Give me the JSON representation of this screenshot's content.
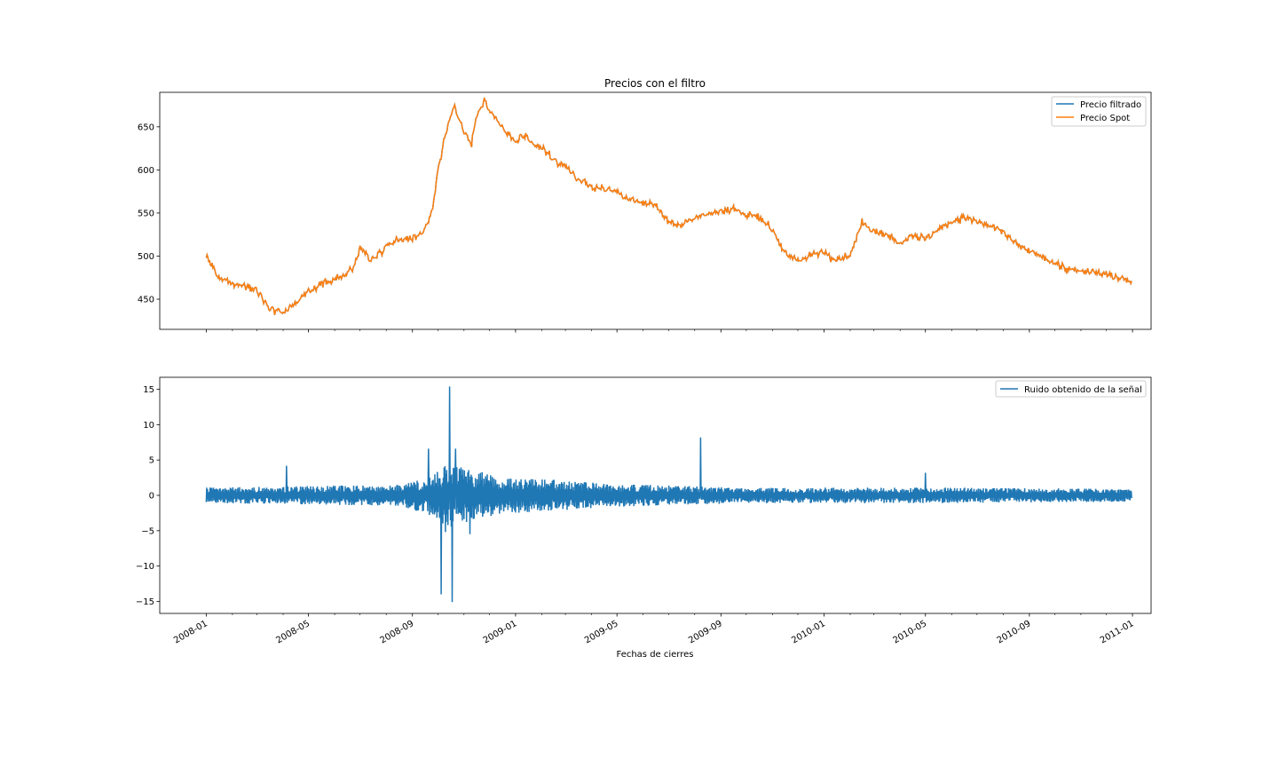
{
  "chart_data": [
    {
      "type": "line",
      "title": "Precios con el filtro",
      "xlabel": "",
      "ylabel": "",
      "xlim": [
        "2007-11-07",
        "2011-01-23"
      ],
      "ylim": [
        415,
        690
      ],
      "yticks": [
        450,
        500,
        550,
        600,
        650
      ],
      "grid": false,
      "legend_position": "top-right",
      "series": [
        {
          "name": "Precio filtrado",
          "color": "#1f77b4",
          "x": [
            "2008-01-01",
            "2008-01-08",
            "2008-01-15",
            "2008-02-01",
            "2008-02-15",
            "2008-03-01",
            "2008-03-15",
            "2008-04-01",
            "2008-04-15",
            "2008-05-01",
            "2008-05-15",
            "2008-06-01",
            "2008-06-15",
            "2008-06-25",
            "2008-07-01",
            "2008-07-15",
            "2008-08-01",
            "2008-08-15",
            "2008-09-01",
            "2008-09-15",
            "2008-09-25",
            "2008-10-01",
            "2008-10-10",
            "2008-10-20",
            "2008-11-01",
            "2008-11-10",
            "2008-11-15",
            "2008-11-25",
            "2008-12-05",
            "2008-12-15",
            "2009-01-01",
            "2009-01-10",
            "2009-01-20",
            "2009-02-01",
            "2009-02-10",
            "2009-02-15",
            "2009-03-01",
            "2009-03-15",
            "2009-04-01",
            "2009-04-15",
            "2009-05-01",
            "2009-05-15",
            "2009-06-01",
            "2009-06-15",
            "2009-07-01",
            "2009-07-15",
            "2009-08-01",
            "2009-08-15",
            "2009-09-01",
            "2009-09-15",
            "2009-10-01",
            "2009-10-15",
            "2009-11-01",
            "2009-11-15",
            "2009-12-01",
            "2009-12-15",
            "2010-01-01",
            "2010-01-15",
            "2010-02-01",
            "2010-02-15",
            "2010-03-01",
            "2010-03-15",
            "2010-04-01",
            "2010-04-15",
            "2010-05-01",
            "2010-05-15",
            "2010-06-01",
            "2010-06-15",
            "2010-07-01",
            "2010-07-15",
            "2010-08-01",
            "2010-08-15",
            "2010-09-01",
            "2010-09-15",
            "2010-10-01",
            "2010-10-15",
            "2010-11-01",
            "2010-11-15",
            "2010-12-01",
            "2010-12-15",
            "2010-12-31"
          ],
          "y": [
            499,
            490,
            475,
            468,
            465,
            462,
            440,
            435,
            445,
            458,
            468,
            472,
            480,
            490,
            510,
            495,
            512,
            520,
            520,
            530,
            555,
            600,
            640,
            675,
            645,
            630,
            660,
            680,
            665,
            650,
            632,
            640,
            630,
            625,
            618,
            610,
            605,
            590,
            580,
            578,
            575,
            565,
            562,
            560,
            540,
            535,
            545,
            548,
            553,
            555,
            548,
            545,
            530,
            505,
            495,
            500,
            505,
            495,
            500,
            540,
            530,
            525,
            515,
            525,
            520,
            530,
            540,
            545,
            540,
            535,
            528,
            515,
            505,
            500,
            492,
            485,
            482,
            482,
            478,
            476,
            470
          ]
        },
        {
          "name": "Precio Spot",
          "color": "#ff7f0e",
          "x": [
            "2008-01-01",
            "2008-01-08",
            "2008-01-15",
            "2008-02-01",
            "2008-02-15",
            "2008-03-01",
            "2008-03-15",
            "2008-04-01",
            "2008-04-15",
            "2008-05-01",
            "2008-05-15",
            "2008-06-01",
            "2008-06-15",
            "2008-06-25",
            "2008-07-01",
            "2008-07-15",
            "2008-08-01",
            "2008-08-15",
            "2008-09-01",
            "2008-09-15",
            "2008-09-25",
            "2008-10-01",
            "2008-10-10",
            "2008-10-20",
            "2008-11-01",
            "2008-11-10",
            "2008-11-15",
            "2008-11-25",
            "2008-12-05",
            "2008-12-15",
            "2009-01-01",
            "2009-01-10",
            "2009-01-20",
            "2009-02-01",
            "2009-02-10",
            "2009-02-15",
            "2009-03-01",
            "2009-03-15",
            "2009-04-01",
            "2009-04-15",
            "2009-05-01",
            "2009-05-15",
            "2009-06-01",
            "2009-06-15",
            "2009-07-01",
            "2009-07-15",
            "2009-08-01",
            "2009-08-15",
            "2009-09-01",
            "2009-09-15",
            "2009-10-01",
            "2009-10-15",
            "2009-11-01",
            "2009-11-15",
            "2009-12-01",
            "2009-12-15",
            "2010-01-01",
            "2010-01-15",
            "2010-02-01",
            "2010-02-15",
            "2010-03-01",
            "2010-03-15",
            "2010-04-01",
            "2010-04-15",
            "2010-05-01",
            "2010-05-15",
            "2010-06-01",
            "2010-06-15",
            "2010-07-01",
            "2010-07-15",
            "2010-08-01",
            "2010-08-15",
            "2010-09-01",
            "2010-09-15",
            "2010-10-01",
            "2010-10-15",
            "2010-11-01",
            "2010-11-15",
            "2010-12-01",
            "2010-12-15",
            "2010-12-31"
          ],
          "y": [
            499,
            490,
            475,
            468,
            465,
            462,
            440,
            435,
            445,
            458,
            468,
            472,
            480,
            490,
            510,
            495,
            512,
            520,
            520,
            530,
            555,
            600,
            640,
            675,
            645,
            630,
            660,
            680,
            665,
            650,
            632,
            640,
            630,
            625,
            618,
            610,
            605,
            590,
            580,
            578,
            575,
            565,
            562,
            560,
            540,
            535,
            545,
            548,
            553,
            555,
            548,
            545,
            530,
            505,
            495,
            500,
            505,
            495,
            500,
            540,
            530,
            525,
            515,
            525,
            520,
            530,
            540,
            545,
            540,
            535,
            528,
            515,
            505,
            500,
            492,
            485,
            482,
            482,
            478,
            476,
            470
          ]
        }
      ],
      "shares_x_with_next": true
    },
    {
      "type": "line",
      "title": "",
      "xlabel": "Fechas de cierres",
      "ylabel": "",
      "xlim": [
        "2007-11-07",
        "2011-01-23"
      ],
      "ylim": [
        -16.7,
        16.7
      ],
      "yticks": [
        -15,
        -10,
        -5,
        0,
        5,
        10,
        15
      ],
      "xticks": [
        "2008-01",
        "2008-05",
        "2008-09",
        "2009-01",
        "2009-05",
        "2009-09",
        "2010-01",
        "2010-05",
        "2010-09",
        "2011-01"
      ],
      "grid": false,
      "legend_position": "top-right",
      "series": [
        {
          "name": "Ruido obtenido de la señal",
          "color": "#1f77b4",
          "x": [
            "2008-01-01",
            "2008-04-05",
            "2008-09-20",
            "2008-10-05",
            "2008-10-10",
            "2008-10-15",
            "2008-10-18",
            "2008-10-22",
            "2008-11-08",
            "2009-08-08",
            "2010-05-01",
            "2010-12-31"
          ],
          "y": [
            0,
            4.2,
            6.6,
            -14,
            -5.2,
            15.4,
            -15.1,
            6.6,
            -5.5,
            8.2,
            3.2,
            0
          ],
          "amplitude_envelope": {
            "x": [
              "2008-01-01",
              "2008-08-15",
              "2008-09-15",
              "2008-10-15",
              "2008-11-15",
              "2008-12-15",
              "2009-02-15",
              "2009-05-01",
              "2009-10-01",
              "2010-06-01",
              "2010-12-31"
            ],
            "y": [
              1.1,
              1.5,
              2.5,
              4.6,
              3.5,
              2.6,
              2.2,
              1.6,
              1.1,
              1.1,
              0.9
            ]
          }
        }
      ]
    }
  ]
}
